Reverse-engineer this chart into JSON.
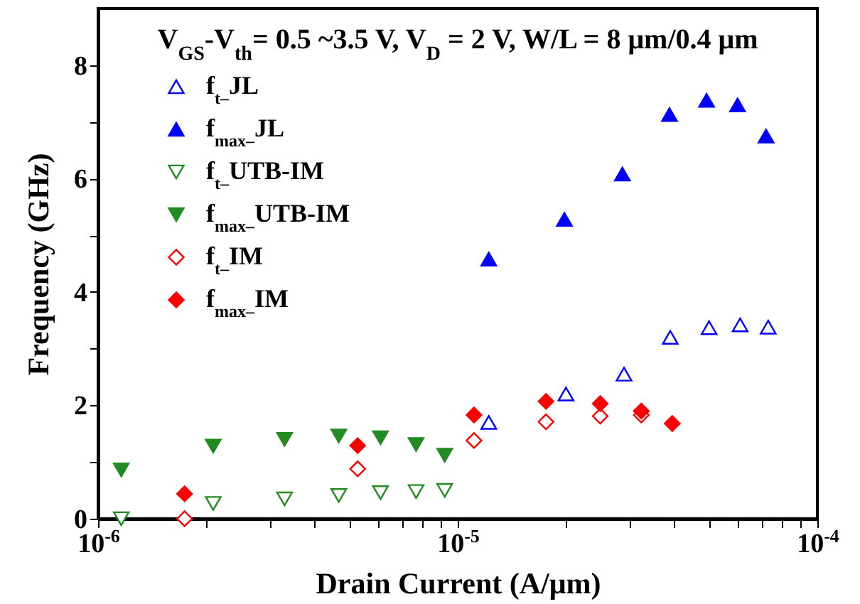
{
  "chart_data": {
    "type": "scatter",
    "title": "V$_{GS}$-V$_{th}$= 0.5 ~3.5 V, V$_{D}$ = 2 V, W/L = 8 μm/0.4 μm",
    "xlabel": "Drain Current (A/μm)",
    "ylabel": "Frequency (GHz)",
    "log": "x",
    "grid": false,
    "legend": "top left",
    "xlim": [
      1e-06,
      0.0001
    ],
    "xticks": [
      {
        "value": 1e-06,
        "label": "10$^{-6}$"
      },
      {
        "value": 2e-06,
        "label": null
      },
      {
        "value": 3e-06,
        "label": null
      },
      {
        "value": 4e-06,
        "label": null
      },
      {
        "value": 5e-06,
        "label": null
      },
      {
        "value": 6e-06,
        "label": null
      },
      {
        "value": 7e-06,
        "label": null
      },
      {
        "value": 8e-06,
        "label": null
      },
      {
        "value": 9e-06,
        "label": null
      },
      {
        "value": 1e-05,
        "label": "10$^{-5}$"
      },
      {
        "value": 2e-05,
        "label": null
      },
      {
        "value": 3e-05,
        "label": null
      },
      {
        "value": 4e-05,
        "label": null
      },
      {
        "value": 5e-05,
        "label": null
      },
      {
        "value": 6e-05,
        "label": null
      },
      {
        "value": 7e-05,
        "label": null
      },
      {
        "value": 8e-05,
        "label": null
      },
      {
        "value": 9e-05,
        "label": null
      },
      {
        "value": 0.0001,
        "label": "10$^{-4}$"
      }
    ],
    "ylim": [
      0,
      9
    ],
    "yticks": [
      0,
      {
        "value": 1,
        "label": null
      },
      2,
      {
        "value": 3,
        "label": null
      },
      4,
      {
        "value": 5,
        "label": null
      },
      6,
      {
        "value": 7,
        "label": null
      },
      8
    ],
    "series": [
      {
        "name": "f$_{t–}$JL",
        "color": "#0000ff",
        "marker": "triangle-up-open",
        "x": [
          1.22e-05,
          2e-05,
          2.9e-05,
          3.9e-05,
          5e-05,
          6.1e-05,
          7.3e-05
        ],
        "values": [
          1.7,
          2.2,
          2.55,
          3.2,
          3.37,
          3.42,
          3.38
        ]
      },
      {
        "name": "f$_{max–}$JL",
        "color": "#0000ff",
        "marker": "triangle-up",
        "x": [
          1.22e-05,
          1.98e-05,
          2.87e-05,
          3.88e-05,
          4.92e-05,
          6e-05,
          7.2e-05
        ],
        "values": [
          4.58,
          5.28,
          6.08,
          7.13,
          7.38,
          7.3,
          6.75
        ]
      },
      {
        "name": "f$_{t–}$UTB-IM",
        "color": "#228b22",
        "marker": "triangle-down-open",
        "x": [
          1.16e-06,
          2.09e-06,
          3.3e-06,
          4.67e-06,
          6.1e-06,
          7.66e-06,
          9.2e-06
        ],
        "values": [
          0,
          0.27,
          0.35,
          0.41,
          0.46,
          0.48,
          0.5
        ]
      },
      {
        "name": "f$_{max–}$UTB-IM",
        "color": "#228b22",
        "marker": "triangle-down",
        "x": [
          1.16e-06,
          2.09e-06,
          3.3e-06,
          4.67e-06,
          6.1e-06,
          7.66e-06,
          9.2e-06
        ],
        "values": [
          0.86,
          1.28,
          1.4,
          1.46,
          1.43,
          1.31,
          1.12
        ]
      },
      {
        "name": "f$_{t–}$IM",
        "color": "#ff0000",
        "marker": "diamond-open",
        "x": [
          1.74e-06,
          5.27e-06,
          1.11e-05,
          1.76e-05,
          2.49e-05,
          3.24e-05
        ],
        "values": [
          0,
          0.88,
          1.38,
          1.71,
          1.81,
          1.83
        ]
      },
      {
        "name": "f$_{max–}$IM",
        "color": "#ff0000",
        "marker": "diamond",
        "x": [
          1.74e-06,
          5.27e-06,
          1.11e-05,
          1.76e-05,
          2.49e-05,
          3.24e-05,
          3.95e-05
        ],
        "values": [
          0.44,
          1.29,
          1.83,
          2.07,
          2.03,
          1.9,
          1.68
        ]
      }
    ]
  }
}
